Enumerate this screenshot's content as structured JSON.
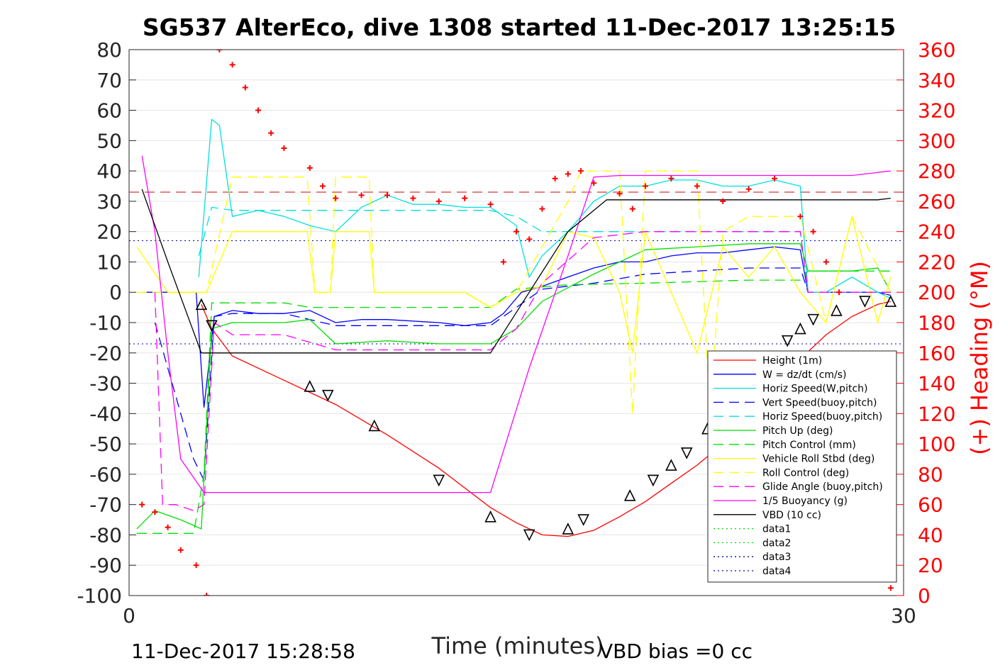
{
  "chart_data": {
    "type": "line",
    "title": "SG537 AlterEco, dive 1308 started 11-Dec-2017 13:25:15",
    "xlabel": "Time (minutes)",
    "ylabel": "",
    "y2label": "(+) Heading (°M)",
    "xlim": [
      0,
      30
    ],
    "ylim": [
      -100,
      80
    ],
    "y2lim": [
      0,
      360
    ],
    "x_ticks": [
      "0",
      "30"
    ],
    "y_ticks": [
      "80",
      "70",
      "60",
      "50",
      "40",
      "30",
      "20",
      "10",
      "0",
      "-10",
      "-20",
      "-30",
      "-40",
      "-50",
      "-60",
      "-70",
      "-80",
      "-90",
      "-100"
    ],
    "y2_ticks": [
      "360",
      "340",
      "320",
      "300",
      "280",
      "260",
      "240",
      "220",
      "200",
      "180",
      "160",
      "140",
      "120",
      "100",
      "80",
      "60",
      "40",
      "20",
      "0"
    ],
    "footer_left": "11-Dec-2017 15:28:58",
    "footer_right": "VBD bias =0 cc",
    "grid": true,
    "legend_position": "lower-right",
    "legend": [
      {
        "label": "Height (1m)",
        "color": "#ff0000",
        "style": "solid"
      },
      {
        "label": "W = dz/dt (cm/s)",
        "color": "#0000ff",
        "style": "solid"
      },
      {
        "label": "Horiz Speed(W,pitch)",
        "color": "#00e0e0",
        "style": "solid"
      },
      {
        "label": "Vert Speed(buoy,pitch)",
        "color": "#0000ff",
        "style": "dashed"
      },
      {
        "label": "Horiz Speed(buoy,pitch)",
        "color": "#00e0e0",
        "style": "dashed"
      },
      {
        "label": "Pitch Up (deg)",
        "color": "#00dd00",
        "style": "solid"
      },
      {
        "label": "Pitch Control (mm)",
        "color": "#00dd00",
        "style": "dashed"
      },
      {
        "label": "Vehicle Roll Stbd (deg)",
        "color": "#ffff00",
        "style": "solid"
      },
      {
        "label": "Roll Control (deg)",
        "color": "#ffff00",
        "style": "dashed"
      },
      {
        "label": "Glide Angle (buoy,pitch)",
        "color": "#ff00ff",
        "style": "dashed"
      },
      {
        "label": "1/5 Buoyancy (g)",
        "color": "#ff00ff",
        "style": "solid"
      },
      {
        "label": "VBD (10 cc)",
        "color": "#000000",
        "style": "solid"
      },
      {
        "label": "data1",
        "color": "#00dd00",
        "style": "dotted"
      },
      {
        "label": "data2",
        "color": "#00dd00",
        "style": "dotted"
      },
      {
        "label": "data3",
        "color": "#0000aa",
        "style": "dotted"
      },
      {
        "label": "data4",
        "color": "#0000aa",
        "style": "dotted"
      }
    ],
    "reference_lines": [
      {
        "y": 33,
        "color": "#cc0000",
        "style": "dashed"
      },
      {
        "y": 17,
        "color": "#0000aa",
        "style": "dotted"
      },
      {
        "y": -17,
        "color": "#0000aa",
        "style": "dotted"
      }
    ],
    "series": [
      {
        "name": "Height (1m)",
        "color": "#ff0000",
        "style": "solid",
        "x": [
          2.8,
          3.2,
          4,
          6,
          8,
          10,
          12,
          14,
          15,
          16,
          17,
          18,
          19,
          20,
          21,
          22,
          23,
          24,
          25,
          26,
          27,
          28,
          29,
          29.5
        ],
        "y": [
          -4,
          -12,
          -21,
          -29,
          -37,
          -47,
          -58,
          -71,
          -76,
          -80,
          -80.5,
          -78.5,
          -74,
          -69,
          -63,
          -57,
          -50,
          -42,
          -33,
          -22,
          -14,
          -8,
          -4,
          -3
        ]
      },
      {
        "name": "W = dz/dt (cm/s)",
        "color": "#0000ff",
        "style": "solid",
        "x": [
          0.5,
          1.5,
          2,
          2.6,
          2.9,
          3.3,
          4,
          5,
          6,
          7,
          8,
          9,
          10,
          12,
          13,
          14,
          14.5,
          15.2,
          16,
          17,
          18,
          19,
          20,
          21,
          22,
          23,
          24,
          25,
          26,
          26.3,
          27,
          28,
          29,
          29.5
        ],
        "y": [
          0,
          0,
          0,
          0,
          -38,
          -8,
          -6,
          -7,
          -7,
          -6,
          -10,
          -9,
          -9,
          -10,
          -11,
          -10,
          -7,
          0,
          2,
          5,
          8,
          10,
          10,
          12,
          13,
          13,
          14,
          15,
          14,
          0,
          0,
          0,
          0,
          -1
        ]
      },
      {
        "name": "Horiz Speed(W,pitch)",
        "color": "#00e0e0",
        "style": "solid",
        "x": [
          2.7,
          3.2,
          3.5,
          4,
          5,
          6,
          7,
          8,
          9,
          10,
          11,
          12,
          13,
          14,
          15,
          15.5,
          16,
          17,
          18,
          19,
          20,
          21,
          22,
          23,
          24,
          25,
          26,
          26.3,
          27,
          28,
          29,
          29.5
        ],
        "y": [
          5,
          57,
          55,
          25,
          27,
          25,
          22,
          20,
          28,
          32,
          29,
          29,
          28,
          28,
          22,
          5,
          12,
          20,
          30,
          35,
          35,
          37,
          37,
          35,
          35,
          37,
          35,
          0,
          0,
          5,
          0,
          -2
        ]
      },
      {
        "name": "Vert Speed(buoy,pitch)",
        "color": "#0000ff",
        "style": "dashed",
        "x": [
          1,
          2.5,
          2.9,
          3.3,
          4,
          6,
          8,
          10,
          12,
          14,
          15,
          16,
          18,
          20,
          22,
          24,
          26,
          26.3,
          28,
          29.5
        ],
        "y": [
          -10,
          -55,
          -62,
          -8,
          -7,
          -7,
          -11,
          -11,
          -11,
          -11,
          -5,
          1,
          3,
          6,
          7,
          8,
          8,
          0,
          0,
          0
        ]
      },
      {
        "name": "Horiz Speed(buoy,pitch)",
        "color": "#00e0e0",
        "style": "dashed",
        "x": [
          2.7,
          3.2,
          4,
          6,
          8,
          10,
          12,
          14,
          15,
          16,
          18,
          20,
          22,
          24,
          26,
          26.3,
          28,
          29.5
        ],
        "y": [
          12,
          28,
          27,
          27,
          27,
          27,
          27,
          27,
          25,
          20,
          20,
          20,
          20,
          20,
          20,
          0,
          0,
          0
        ]
      },
      {
        "name": "Pitch Up (deg)",
        "color": "#00dd00",
        "style": "solid",
        "x": [
          0.3,
          1,
          2,
          2.8,
          3.2,
          4,
          6,
          7,
          8,
          10,
          12,
          14,
          15,
          16,
          18,
          20,
          22,
          24,
          26,
          26.3,
          28,
          29,
          29.5
        ],
        "y": [
          -78,
          -72,
          -75,
          -78,
          -12,
          -10,
          -10,
          -9,
          -17,
          -16,
          -17,
          -17,
          -12,
          -3,
          6,
          14,
          15,
          16,
          16,
          7,
          7,
          8,
          0
        ]
      },
      {
        "name": "Pitch Control (mm)",
        "color": "#00dd00",
        "style": "dashed",
        "x": [
          0.3,
          1.5,
          2.5,
          2.9,
          3.2,
          6,
          7,
          14,
          15,
          17,
          20,
          24,
          26,
          26.3,
          29.5
        ],
        "y": [
          -79.5,
          -79.5,
          -79.5,
          -60,
          -3.5,
          -3.5,
          -5,
          -5,
          1,
          2.5,
          3,
          4,
          4,
          7,
          7
        ]
      },
      {
        "name": "Vehicle Roll Stbd (deg)",
        "color": "#ffff00",
        "style": "solid",
        "x": [
          0.3,
          1.5,
          2.5,
          3,
          4,
          6,
          6.9,
          7.2,
          7.8,
          8,
          9.3,
          9.5,
          13,
          14,
          15,
          16,
          17,
          18,
          19,
          19.5,
          20,
          21,
          22,
          23,
          24,
          25,
          26,
          27,
          28,
          29,
          29.5
        ],
        "y": [
          15,
          0,
          0,
          0,
          20,
          20,
          20,
          0,
          0,
          20,
          20,
          0,
          0,
          -5,
          0,
          2,
          20,
          18,
          0,
          -20,
          20,
          0,
          -20,
          15,
          5,
          15,
          0,
          -10,
          25,
          -10,
          5
        ]
      },
      {
        "name": "Roll Control (deg)",
        "color": "#ffff00",
        "style": "dashed",
        "x": [
          0.3,
          2.5,
          3,
          4,
          6,
          6.9,
          7.2,
          7.8,
          8,
          9.3,
          9.5,
          13,
          14,
          15,
          17,
          17.5,
          19,
          19.5,
          20,
          22,
          22.5,
          23,
          24,
          26,
          27,
          28,
          29.5
        ],
        "y": [
          0,
          0,
          0,
          38,
          38,
          38,
          0,
          0,
          38,
          38,
          0,
          0,
          -5,
          0,
          30,
          40,
          40,
          -40,
          40,
          40,
          -40,
          20,
          25,
          25,
          -10,
          25,
          0
        ]
      },
      {
        "name": "Glide Angle (buoy,pitch)",
        "color": "#ff00ff",
        "style": "dashed",
        "x": [
          1,
          1.3,
          1.8,
          2.5,
          2.9,
          3.3,
          4,
          6,
          8,
          10,
          12,
          14,
          15,
          16,
          18,
          20,
          22,
          24,
          26,
          26.3,
          28,
          29.5
        ],
        "y": [
          0,
          -70,
          -70,
          -72,
          -70,
          -10,
          -14,
          -14,
          -19,
          -19,
          -19,
          -19,
          -12,
          3,
          18,
          20,
          20,
          20,
          20,
          0,
          0,
          0
        ]
      },
      {
        "name": "1/5 Buoyancy (g)",
        "color": "#ff00ff",
        "style": "solid",
        "x": [
          0.5,
          1,
          1.5,
          2,
          2.9,
          3.5,
          14,
          15.5,
          17,
          18,
          19,
          22,
          24,
          26,
          28,
          29.5
        ],
        "y": [
          45,
          20,
          -20,
          -55,
          -66,
          -66,
          -66,
          -25,
          12,
          38,
          38.5,
          38.5,
          38.5,
          38.5,
          38.5,
          40
        ]
      },
      {
        "name": "VBD (10 cc)",
        "color": "#000000",
        "style": "solid",
        "x": [
          0.5,
          1.5,
          2.8,
          14,
          15.5,
          17,
          18.5,
          20,
          29,
          29.5
        ],
        "y": [
          34,
          10,
          -20,
          -20,
          0,
          20,
          30.5,
          30.5,
          30.5,
          31
        ]
      }
    ],
    "markers": [
      {
        "name": "Heading",
        "color": "#ff0000",
        "axis": "right",
        "symbol": "+",
        "x": [
          0.5,
          1,
          1.5,
          2,
          2.6,
          3,
          3.5,
          4,
          4.5,
          5,
          5.5,
          6,
          7,
          7.5,
          8,
          9,
          10,
          11,
          12,
          13,
          14,
          14.5,
          15,
          15.5,
          16,
          16.5,
          17,
          17.5,
          18,
          19,
          19.5,
          20,
          21,
          22,
          23,
          24,
          25,
          26,
          26.5,
          27,
          27.5,
          29.5
        ],
        "y": [
          60,
          55,
          45,
          30,
          20,
          0,
          360,
          350,
          335,
          320,
          305,
          295,
          282,
          270,
          262,
          264,
          264,
          262,
          260,
          262,
          258,
          220,
          240,
          235,
          255,
          275,
          278,
          280,
          272,
          265,
          255,
          270,
          275,
          270,
          260,
          268,
          275,
          250,
          240,
          220,
          200,
          5
        ]
      },
      {
        "name": "Depth markers",
        "color": "#000000",
        "axis": "left",
        "symbol": "triangle",
        "x": [
          2.8,
          3.2,
          7,
          7.7,
          9.5,
          12,
          14,
          15.5,
          17,
          17.6,
          19.4,
          20.3,
          21,
          21.6,
          22.4,
          25.5,
          26,
          26.5,
          27.4,
          28.5,
          29.5
        ],
        "y": [
          -4,
          -11,
          -31,
          -34,
          -44,
          -62,
          -74,
          -80,
          -78,
          -75,
          -67,
          -62,
          -57,
          -53,
          -45,
          -16,
          -12,
          -9,
          -6,
          -3,
          -3
        ]
      }
    ]
  }
}
